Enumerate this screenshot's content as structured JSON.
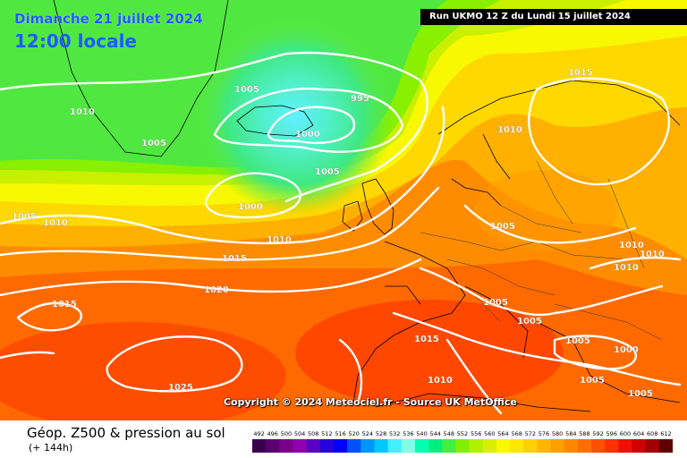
{
  "header": {
    "date_title": "Dimanche 21 juillet 2024",
    "time_title": "12:00 locale",
    "run_info": "Run UKMO 12 Z du Lundi 15 juillet 2024"
  },
  "footer": {
    "field_title": "Géop. Z500 & pression au sol",
    "lead_time": "(+ 144h)",
    "copyright": "Copyright © 2024 Meteociel.fr - Source UK MetOffice"
  },
  "isobar_labels": [
    "1010",
    "1005",
    "995",
    "1000",
    "1005",
    "1005",
    "1000",
    "1010",
    "1015",
    "1020",
    "1015",
    "1025",
    "1015",
    "1010",
    "1010",
    "1005",
    "1005",
    "1005",
    "1010",
    "1010",
    "1015",
    "1010",
    "1000",
    "1005",
    "1005",
    "1005",
    "1010",
    "1005"
  ],
  "color_scale": {
    "labels": [
      "492",
      "496",
      "500",
      "504",
      "508",
      "512",
      "516",
      "520",
      "524",
      "528",
      "532",
      "536",
      "540",
      "544",
      "548",
      "552",
      "556",
      "560",
      "564",
      "568",
      "572",
      "576",
      "580",
      "584",
      "588",
      "592",
      "596",
      "600",
      "604",
      "608",
      "612"
    ],
    "colors": [
      "#3a0050",
      "#5a006e",
      "#7a008c",
      "#8f00b0",
      "#5a00c8",
      "#2a00dc",
      "#0000ff",
      "#0050ff",
      "#0096ff",
      "#00c8ff",
      "#40f0ff",
      "#80ffe8",
      "#00ffb0",
      "#00f080",
      "#40f040",
      "#80f000",
      "#b0f000",
      "#d8f000",
      "#f8f800",
      "#ffe800",
      "#ffd000",
      "#ffb800",
      "#ffa000",
      "#ff8800",
      "#ff6e00",
      "#ff5000",
      "#ff3000",
      "#f01000",
      "#d00000",
      "#a00000",
      "#600000"
    ]
  }
}
